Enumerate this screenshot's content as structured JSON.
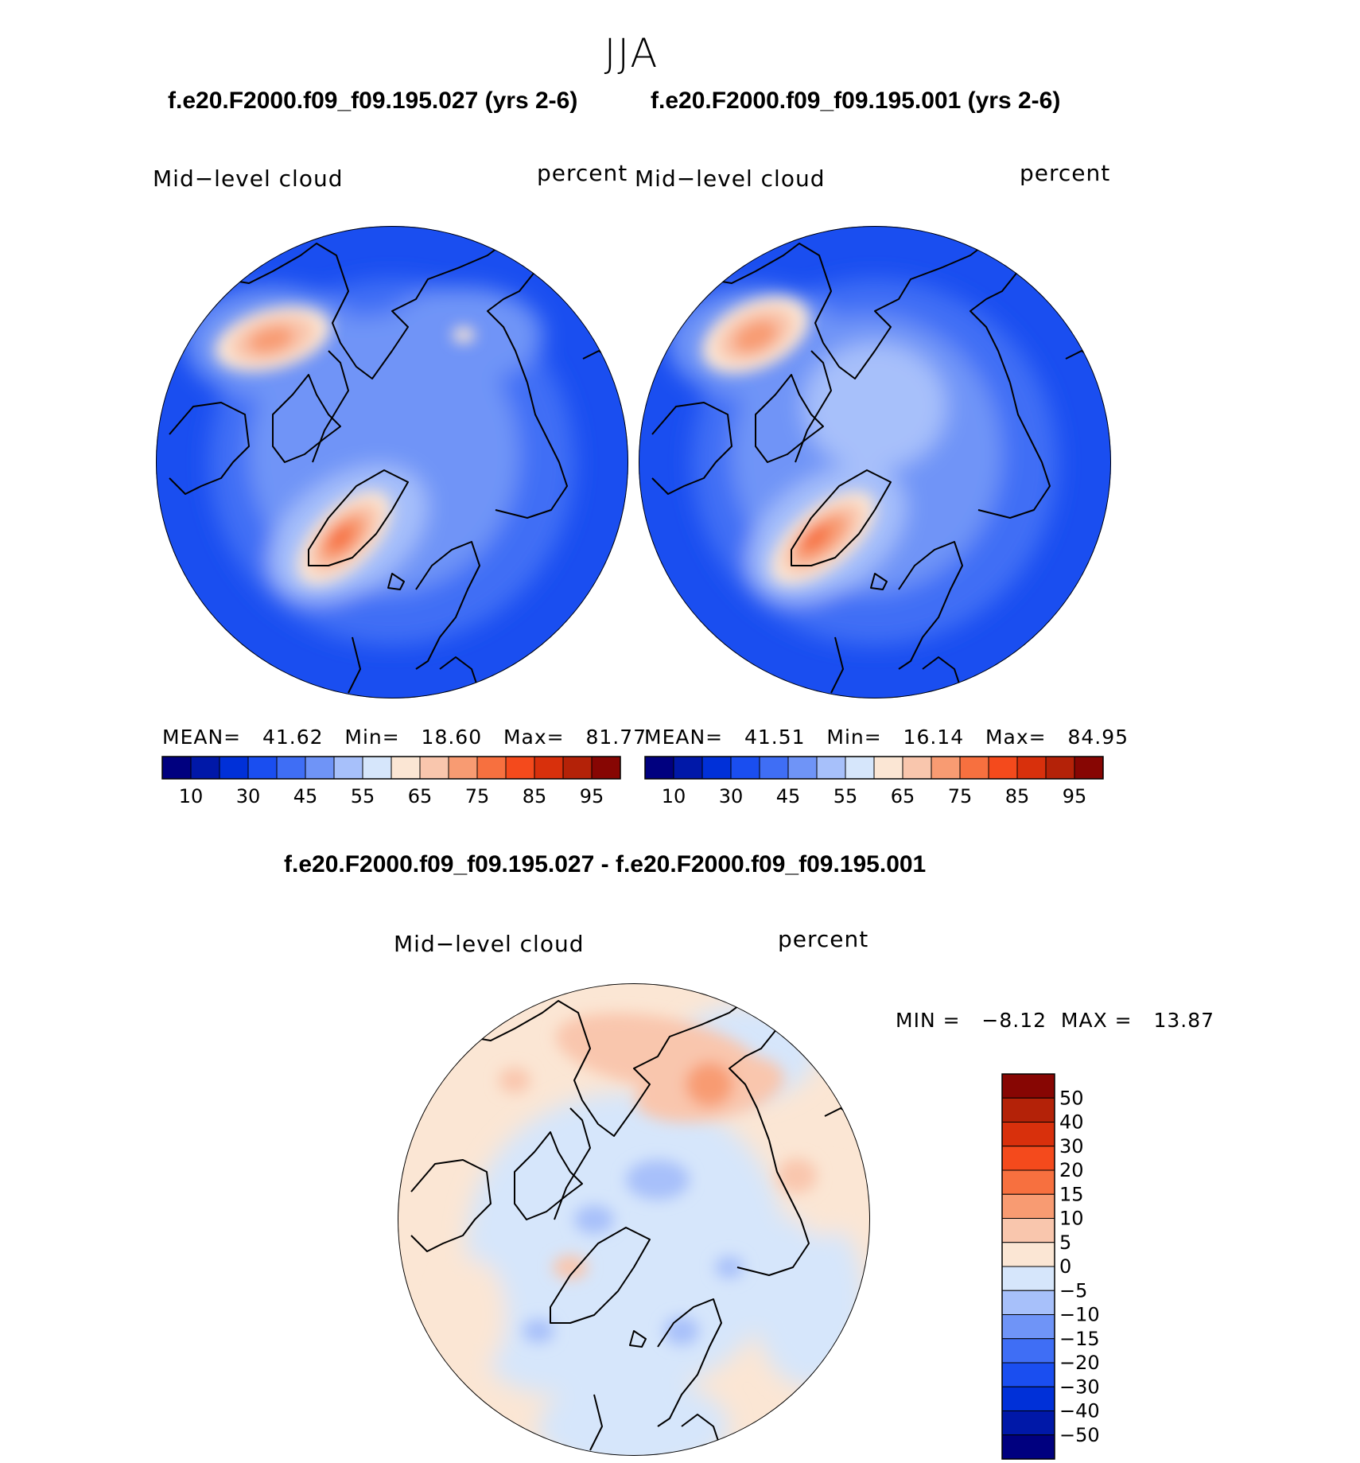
{
  "title": "JJA",
  "panels": [
    {
      "case": "f.e20.F2000.f09_f09.195.027 (yrs 2-6)",
      "variable": "Mid−level cloud",
      "units": "percent",
      "stats": {
        "mean_label": "MEAN=",
        "mean": "41.62",
        "min_label": "Min=",
        "min": "18.60",
        "max_label": "Max=",
        "max": "81.77"
      }
    },
    {
      "case": "f.e20.F2000.f09_f09.195.001 (yrs 2-6)",
      "variable": "Mid−level cloud",
      "units": "percent",
      "stats": {
        "mean_label": "MEAN=",
        "mean": "41.51",
        "min_label": "Min=",
        "min": "16.14",
        "max_label": "Max=",
        "max": "84.95"
      }
    }
  ],
  "colorbar_top": {
    "colors": [
      "#00007f",
      "#0018a8",
      "#0030d8",
      "#1a4ef0",
      "#3f6ef5",
      "#6f94f7",
      "#a7c0fa",
      "#d6e6fb",
      "#fbe6d4",
      "#f9c6ad",
      "#f89b72",
      "#f7703f",
      "#f44a1c",
      "#d8300c",
      "#b42208",
      "#870603"
    ],
    "tick_labels": [
      "10",
      "30",
      "45",
      "55",
      "65",
      "75",
      "85",
      "95"
    ]
  },
  "difference": {
    "title": "f.e20.F2000.f09_f09.195.027 - f.e20.F2000.f09_f09.195.001",
    "variable": "Mid−level cloud",
    "units": "percent",
    "min_label": "MIN =",
    "min": "−8.12",
    "max_label": "MAX =",
    "max": "13.87",
    "colorbar": {
      "colors_top_to_bottom": [
        "#870603",
        "#b42208",
        "#d8300c",
        "#f44a1c",
        "#f7703f",
        "#f89b72",
        "#f9c6ad",
        "#fbe6d4",
        "#d6e6fb",
        "#a7c0fa",
        "#6f94f7",
        "#3f6ef5",
        "#1a4ef0",
        "#0030d8",
        "#0018a8",
        "#00007f"
      ],
      "tick_labels": [
        "50",
        "40",
        "30",
        "20",
        "15",
        "10",
        "5",
        "0",
        "−5",
        "−10",
        "−15",
        "−20",
        "−30",
        "−40",
        "−50"
      ]
    }
  }
}
